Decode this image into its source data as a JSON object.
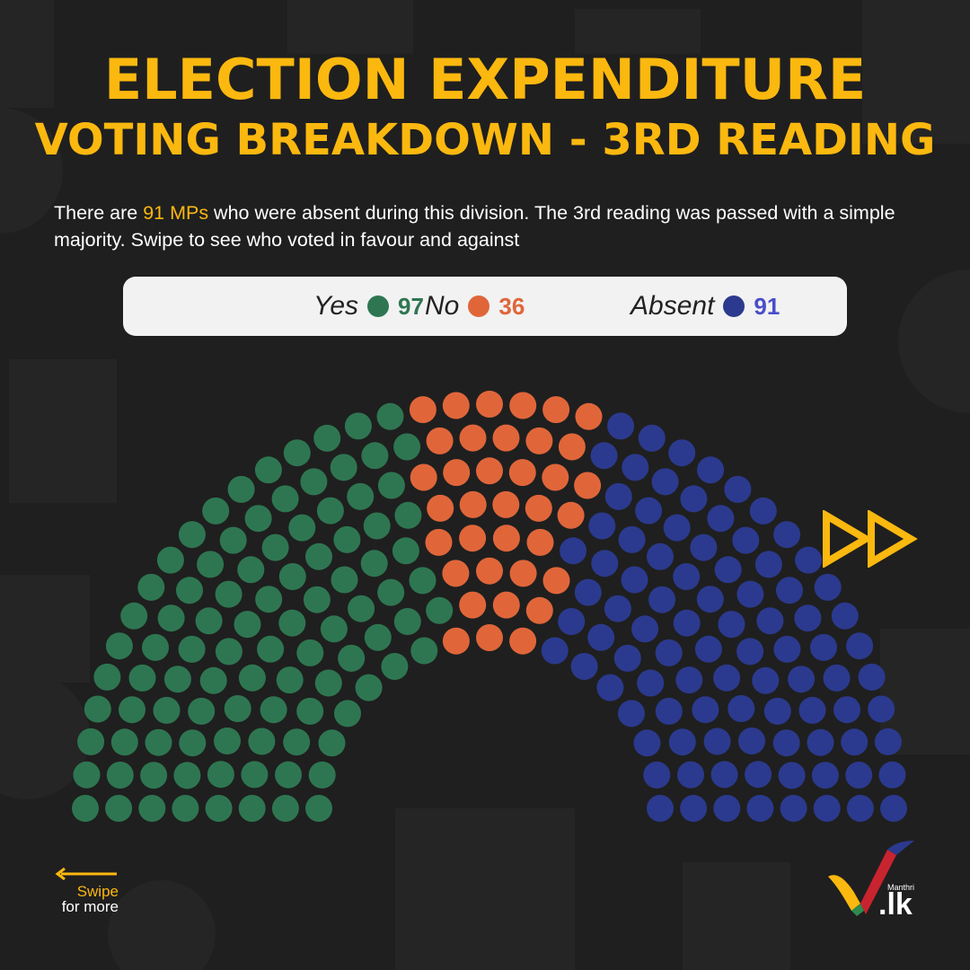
{
  "title_line1": "ELECTION EXPENDITURE",
  "title_line2": "VOTING BREAKDOWN - 3RD READING",
  "description": {
    "part1": "There are ",
    "highlight": "91 MPs",
    "part2": " who were absent during this division. The 3rd reading was passed with a simple majority. Swipe to see who voted in favour and against"
  },
  "colors": {
    "title": "#fbb80f",
    "yes": "#2e7651",
    "no": "#e0663a",
    "absent": "#2b3a8e",
    "absent_count": "#4a4ec9",
    "background": "#1f1f1f"
  },
  "chart_data": {
    "type": "parliament-seat",
    "series": [
      {
        "name": "Yes",
        "value": 97
      },
      {
        "name": "No",
        "value": 36
      },
      {
        "name": "Absent",
        "value": 91
      }
    ],
    "total": 224
  },
  "legend": [
    {
      "label": "Yes",
      "count": "97"
    },
    {
      "label": "No",
      "count": "36"
    },
    {
      "label": "Absent",
      "count": "91"
    }
  ],
  "swipe": {
    "line1": "Swipe",
    "line2": "for more"
  },
  "logo": {
    "small": "Manthri",
    "text": ".lk"
  },
  "icons": {
    "next": "fast-forward-icon",
    "back": "arrow-left-icon"
  }
}
